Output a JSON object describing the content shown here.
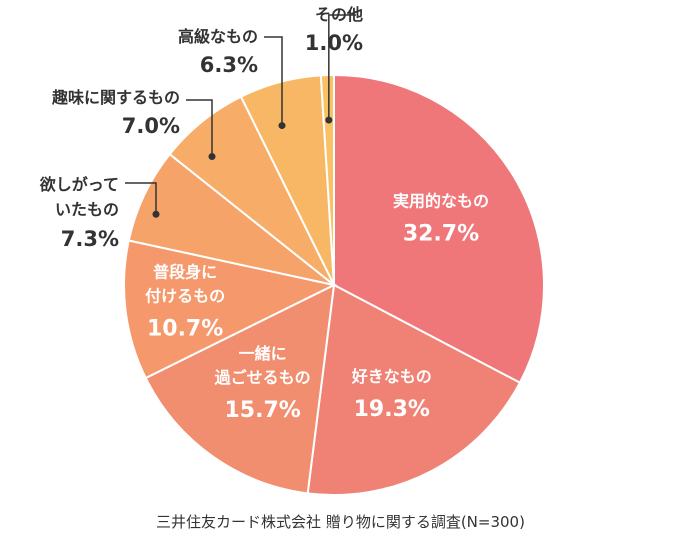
{
  "chart_data": {
    "type": "pie",
    "categories": [
      "実用的なもの",
      "好きなもの",
      "一緒に過ごせるもの",
      "普段身に付けるもの",
      "欲しがっていたもの",
      "趣味に関するもの",
      "高級なもの",
      "その他"
    ],
    "values": [
      32.7,
      19.3,
      15.7,
      10.7,
      7.3,
      7.0,
      6.3,
      1.0
    ],
    "value_labels": [
      "32.7%",
      "19.3%",
      "15.7%",
      "10.7%",
      "7.3%",
      "7.0%",
      "6.3%",
      "1.0%"
    ],
    "label_lines": [
      [
        "実用的なもの"
      ],
      [
        "好きなもの"
      ],
      [
        "一緒に",
        "過ごせるもの"
      ],
      [
        "普段身に",
        "付けるもの"
      ],
      [
        "欲しがって",
        "いたもの"
      ],
      [
        "趣味に関するもの"
      ],
      [
        "高級なもの"
      ],
      [
        "その他"
      ]
    ],
    "colors": [
      "#ef7679",
      "#f08275",
      "#f28e70",
      "#f5986c",
      "#f6a369",
      "#f7ad67",
      "#f8b765",
      "#f9c163"
    ],
    "unit": "%",
    "source": "三井住友カード株式会社 贈り物に関する調査(N=300)"
  }
}
